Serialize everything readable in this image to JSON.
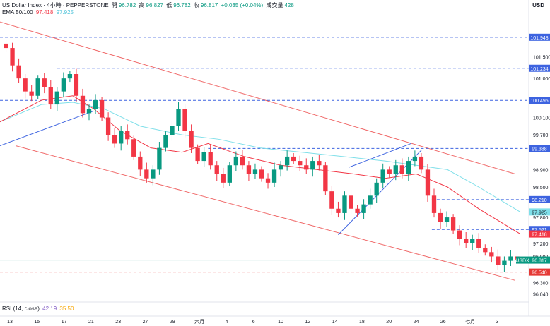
{
  "header": {
    "symbol_line": "US Dollar Index · 4小時 · PEPPERSTONE",
    "open_label": "開",
    "open": "96.782",
    "high_label": "高",
    "high": "96.827",
    "low_label": "低",
    "low": "96.782",
    "close_label": "收",
    "close": "96.817",
    "change": "+0.035 (+0.04%)",
    "volume_label": "成交量",
    "volume": "428",
    "ema_label": "EMA 50/100",
    "ema50": "97.418",
    "ema100": "97.925",
    "currency": "USD"
  },
  "rsi": {
    "label": "RSI (14, close)",
    "value1": "42.19",
    "value2": "35.50"
  },
  "colors": {
    "up": "#089981",
    "down": "#f23645",
    "ema50": "#f23645",
    "ema100": "#7fdfe9",
    "channel": "#f06a6a",
    "trend": "#3d63e0",
    "level": "#3d63e0",
    "support": "#e53935"
  },
  "chart_data": {
    "type": "candlestick",
    "ylim": [
      95.9,
      102.4
    ],
    "price_ticks": [
      "101.500",
      "101.000",
      "100.100",
      "99.700",
      "98.900",
      "98.500",
      "97.800",
      "97.200",
      "96.900",
      "96.300",
      "96.040"
    ],
    "x_ticks": [
      "13",
      "15",
      "17",
      "21",
      "23",
      "27",
      "29",
      "六月",
      "4",
      "6",
      "10",
      "12",
      "14",
      "18",
      "20",
      "24",
      "26",
      "七月",
      "3"
    ],
    "levels": [
      {
        "value": "101.948",
        "style": "dashed",
        "color": "#3d63e0"
      },
      {
        "value": "101.234",
        "style": "dashed",
        "color": "#3d63e0"
      },
      {
        "value": "100.495",
        "style": "dashed",
        "color": "#3d63e0"
      },
      {
        "value": "99.388",
        "style": "dashed",
        "color": "#3d63e0"
      },
      {
        "value": "98.210",
        "style": "dashed",
        "color": "#3d63e0"
      },
      {
        "value": "97.521",
        "style": "dashed",
        "color": "#3d63e0"
      },
      {
        "value": "96.540",
        "style": "dashed",
        "color": "#e53935"
      }
    ],
    "badges": [
      {
        "text": "97.925",
        "bg": "#7fdfe9",
        "fg": "#131722",
        "value": 97.925
      },
      {
        "text": "97.418",
        "bg": "#f23645",
        "fg": "#ffffff",
        "value": 97.418
      },
      {
        "text": "USDX",
        "bg": "#089981",
        "fg": "#ffffff",
        "value": 96.817,
        "name": true
      },
      {
        "text": "96.817",
        "bg": "#089981",
        "fg": "#ffffff",
        "value": 96.817
      }
    ],
    "close_path": [
      101.7,
      101.3,
      101.0,
      100.7,
      100.6,
      101.0,
      100.8,
      100.4,
      100.7,
      101.0,
      101.1,
      100.6,
      100.2,
      100.3,
      100.5,
      100.1,
      99.7,
      99.5,
      99.8,
      99.6,
      99.2,
      98.9,
      98.7,
      98.9,
      99.4,
      99.7,
      99.9,
      100.3,
      99.8,
      99.4,
      99.1,
      99.3,
      99.0,
      98.8,
      98.6,
      99.0,
      99.2,
      99.0,
      98.8,
      98.9,
      98.7,
      98.6,
      98.9,
      99.0,
      99.2,
      99.1,
      99.0,
      98.9,
      99.1,
      99.0,
      98.4,
      98.0,
      97.9,
      98.3,
      98.0,
      97.9,
      98.1,
      98.3,
      98.6,
      98.9,
      98.8,
      99.0,
      98.8,
      99.1,
      99.2,
      98.9,
      98.3,
      97.9,
      97.7,
      97.8,
      97.5,
      97.3,
      97.2,
      97.3,
      97.1,
      97.0,
      96.9,
      96.7,
      96.8,
      96.9,
      96.817
    ],
    "ema50": [
      [
        0,
        100.0
      ],
      [
        0.08,
        100.5
      ],
      [
        0.14,
        100.6
      ],
      [
        0.18,
        100.3
      ],
      [
        0.23,
        99.8
      ],
      [
        0.29,
        99.4
      ],
      [
        0.35,
        99.3
      ],
      [
        0.4,
        99.5
      ],
      [
        0.47,
        99.2
      ],
      [
        0.54,
        99.0
      ],
      [
        0.61,
        98.9
      ],
      [
        0.68,
        98.8
      ],
      [
        0.74,
        98.7
      ],
      [
        0.8,
        98.8
      ],
      [
        0.86,
        98.5
      ],
      [
        0.92,
        98.0
      ],
      [
        1.0,
        97.418
      ]
    ],
    "ema100": [
      [
        0,
        100.0
      ],
      [
        0.08,
        100.4
      ],
      [
        0.14,
        100.45
      ],
      [
        0.2,
        100.3
      ],
      [
        0.27,
        99.9
      ],
      [
        0.35,
        99.7
      ],
      [
        0.42,
        99.6
      ],
      [
        0.5,
        99.4
      ],
      [
        0.58,
        99.3
      ],
      [
        0.66,
        99.2
      ],
      [
        0.74,
        99.1
      ],
      [
        0.8,
        99.0
      ],
      [
        0.86,
        98.9
      ],
      [
        0.92,
        98.5
      ],
      [
        1.0,
        97.925
      ]
    ]
  }
}
